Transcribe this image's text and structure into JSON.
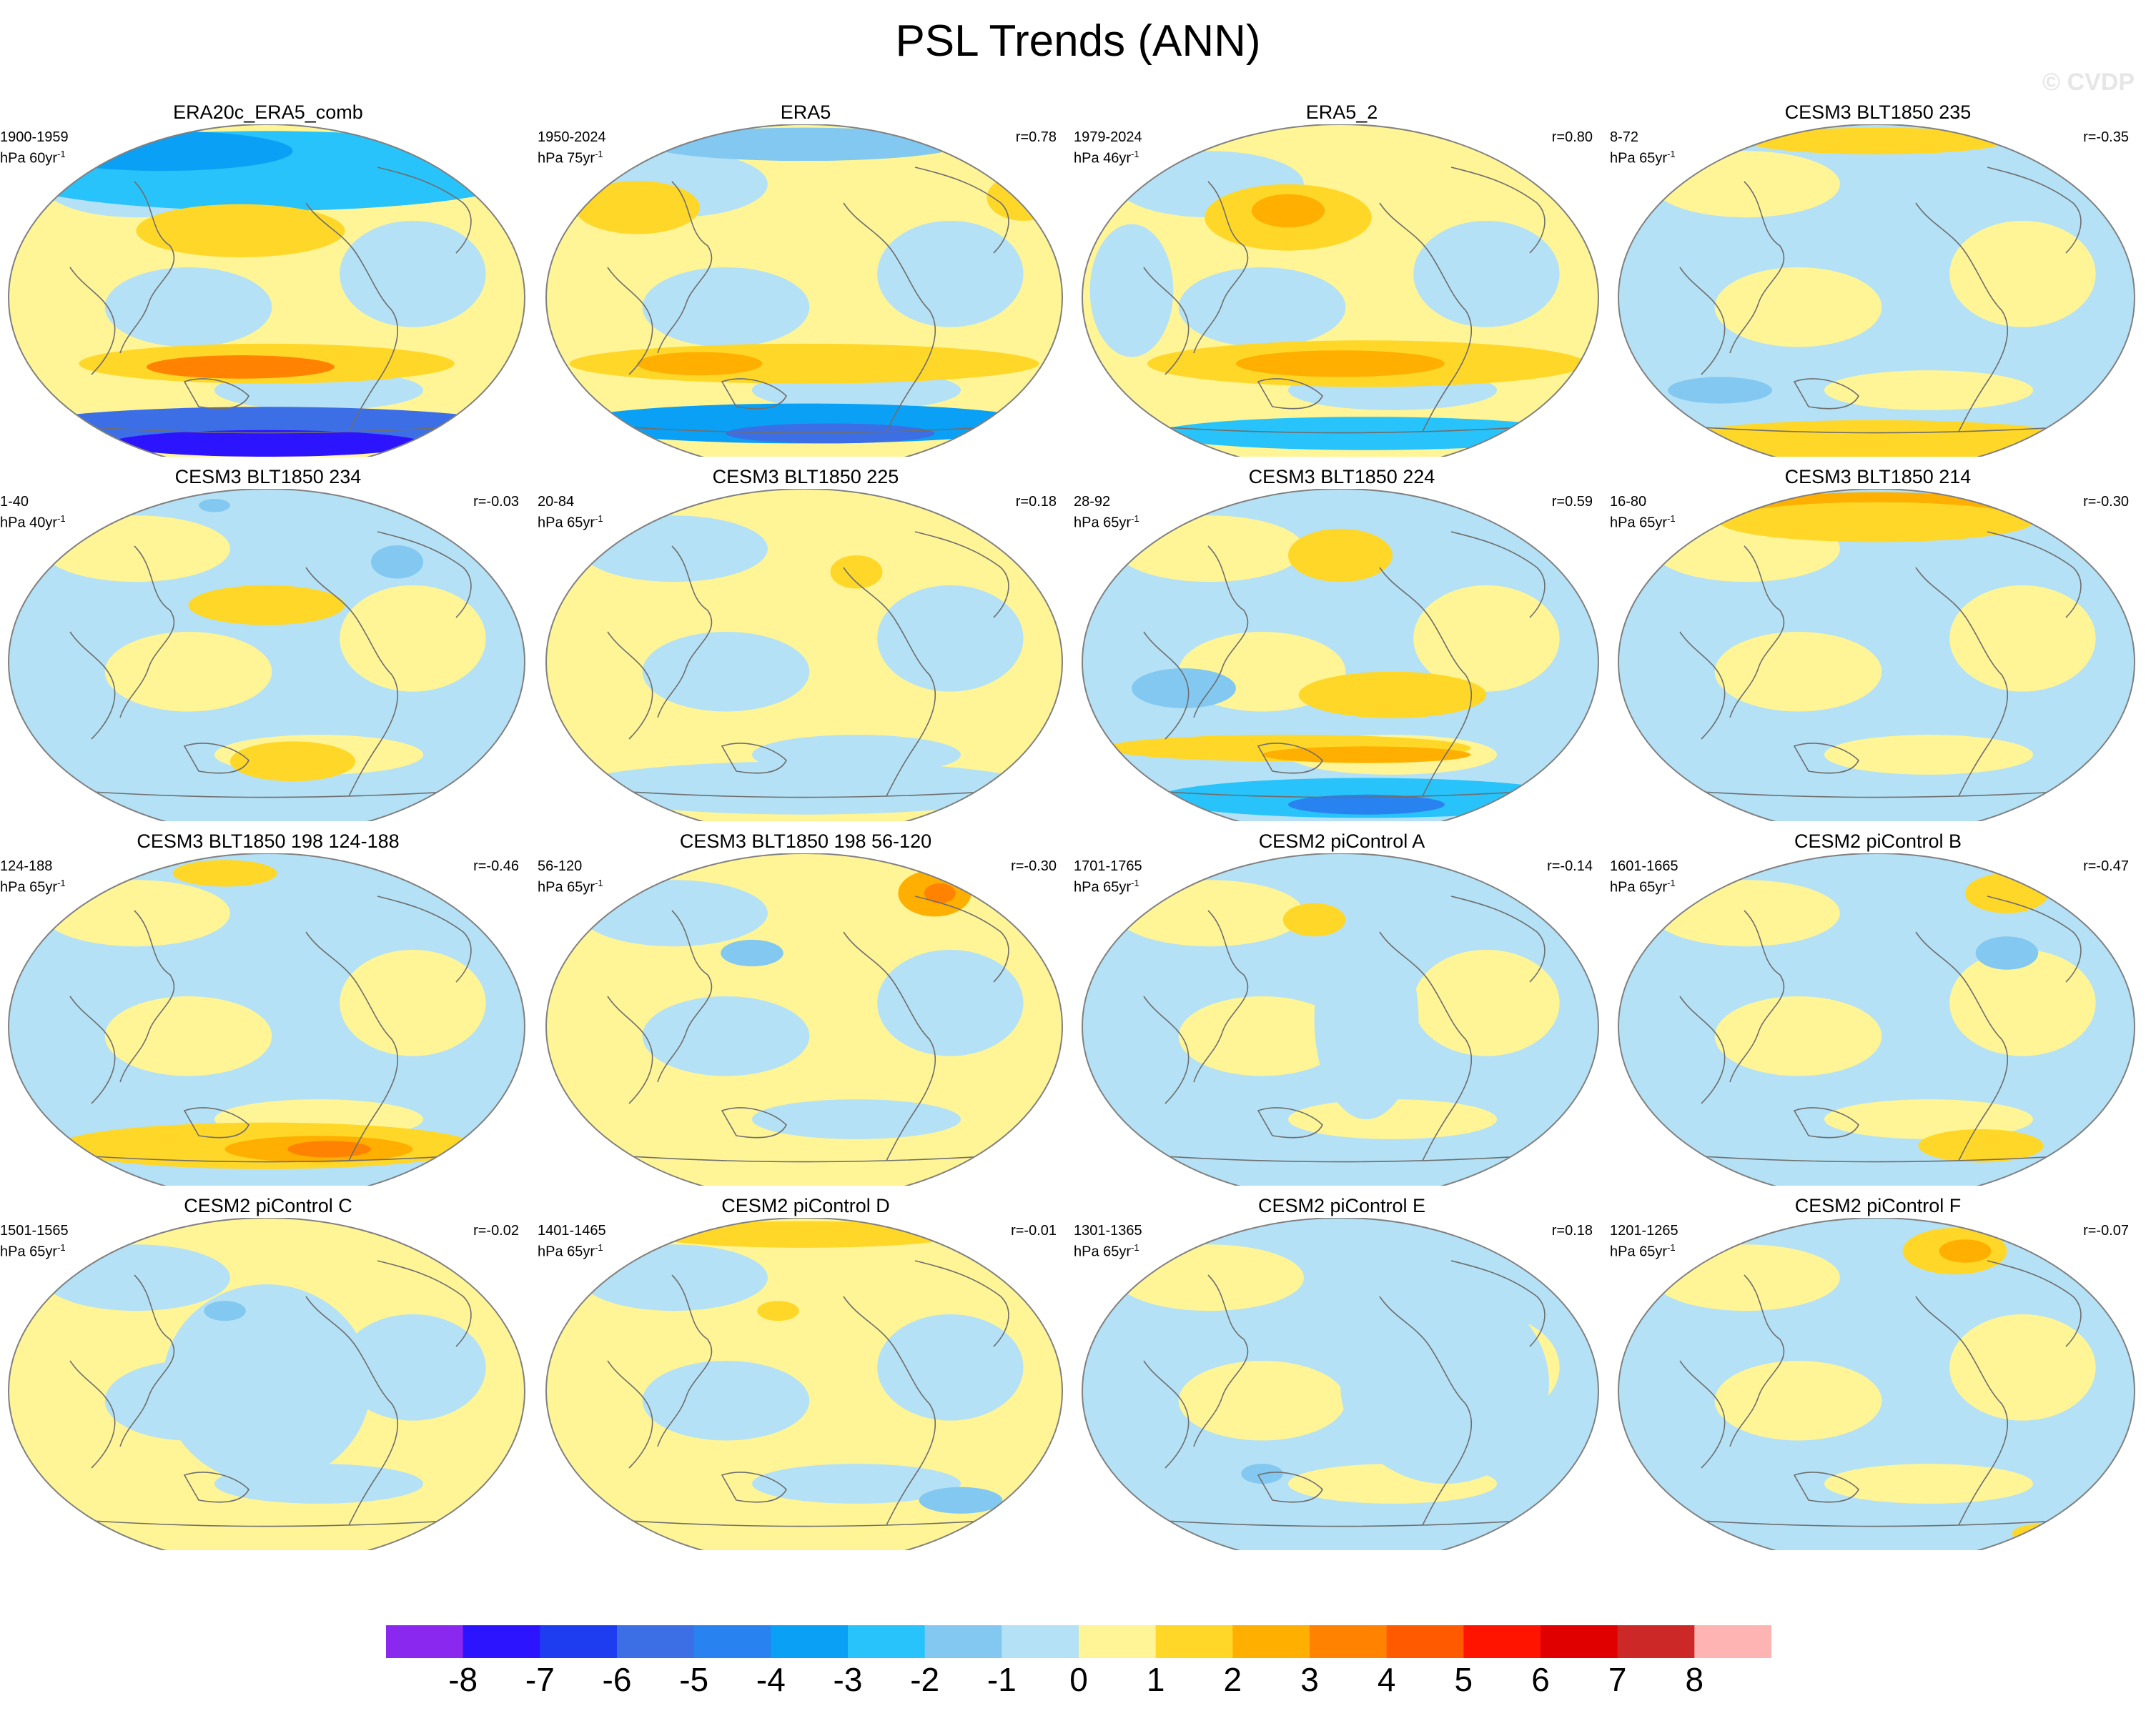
{
  "title": "PSL Trends (ANN)",
  "watermark": "© CVDP",
  "colorbar": {
    "colors": [
      "#8a28f0",
      "#2d14ff",
      "#1e3cf0",
      "#3c6ee6",
      "#2882f0",
      "#0aa0f5",
      "#28c3fa",
      "#82c8f0",
      "#b4e1f5",
      "#fff596",
      "#ffd728",
      "#ffaf00",
      "#ff8200",
      "#ff5a00",
      "#ff1400",
      "#e10000",
      "#cd2828",
      "#ffb4b4"
    ],
    "labels": [
      "-8",
      "-7",
      "-6",
      "-5",
      "-4",
      "-3",
      "-2",
      "-1",
      "0",
      "1",
      "2",
      "3",
      "4",
      "5",
      "6",
      "7",
      "8"
    ]
  },
  "panels": [
    {
      "title": "ERA20c_ERA5_comb",
      "years": "1900-1959",
      "units": "hPa 60yr",
      "exp": "-1",
      "corr": ""
    },
    {
      "title": "ERA5",
      "years": "1950-2024",
      "units": "hPa 75yr",
      "exp": "-1",
      "corr": "r=0.78"
    },
    {
      "title": "ERA5_2",
      "years": "1979-2024",
      "units": "hPa 46yr",
      "exp": "-1",
      "corr": "r=0.80"
    },
    {
      "title": "CESM3 BLT1850 235",
      "years": "8-72",
      "units": "hPa 65yr",
      "exp": "-1",
      "corr": "r=-0.35"
    },
    {
      "title": "CESM3 BLT1850 234",
      "years": "1-40",
      "units": "hPa 40yr",
      "exp": "-1",
      "corr": "r=-0.03"
    },
    {
      "title": "CESM3 BLT1850 225",
      "years": "20-84",
      "units": "hPa 65yr",
      "exp": "-1",
      "corr": "r=0.18"
    },
    {
      "title": "CESM3 BLT1850 224",
      "years": "28-92",
      "units": "hPa 65yr",
      "exp": "-1",
      "corr": "r=0.59"
    },
    {
      "title": "CESM3 BLT1850 214",
      "years": "16-80",
      "units": "hPa 65yr",
      "exp": "-1",
      "corr": "r=-0.30"
    },
    {
      "title": "CESM3 BLT1850 198 124-188",
      "years": "124-188",
      "units": "hPa 65yr",
      "exp": "-1",
      "corr": "r=-0.46"
    },
    {
      "title": "CESM3 BLT1850 198 56-120",
      "years": "56-120",
      "units": "hPa 65yr",
      "exp": "-1",
      "corr": "r=-0.30"
    },
    {
      "title": "CESM2 piControl A",
      "years": "1701-1765",
      "units": "hPa 65yr",
      "exp": "-1",
      "corr": "r=-0.14"
    },
    {
      "title": "CESM2 piControl B",
      "years": "1601-1665",
      "units": "hPa 65yr",
      "exp": "-1",
      "corr": "r=-0.47"
    },
    {
      "title": "CESM2 piControl C",
      "years": "1501-1565",
      "units": "hPa 65yr",
      "exp": "-1",
      "corr": "r=-0.02"
    },
    {
      "title": "CESM2 piControl D",
      "years": "1401-1465",
      "units": "hPa 65yr",
      "exp": "-1",
      "corr": "r=-0.01"
    },
    {
      "title": "CESM2 piControl E",
      "years": "1301-1365",
      "units": "hPa 65yr",
      "exp": "-1",
      "corr": "r=0.18"
    },
    {
      "title": "CESM2 piControl F",
      "years": "1201-1265",
      "units": "hPa 65yr",
      "exp": "-1",
      "corr": "r=-0.07"
    }
  ]
}
